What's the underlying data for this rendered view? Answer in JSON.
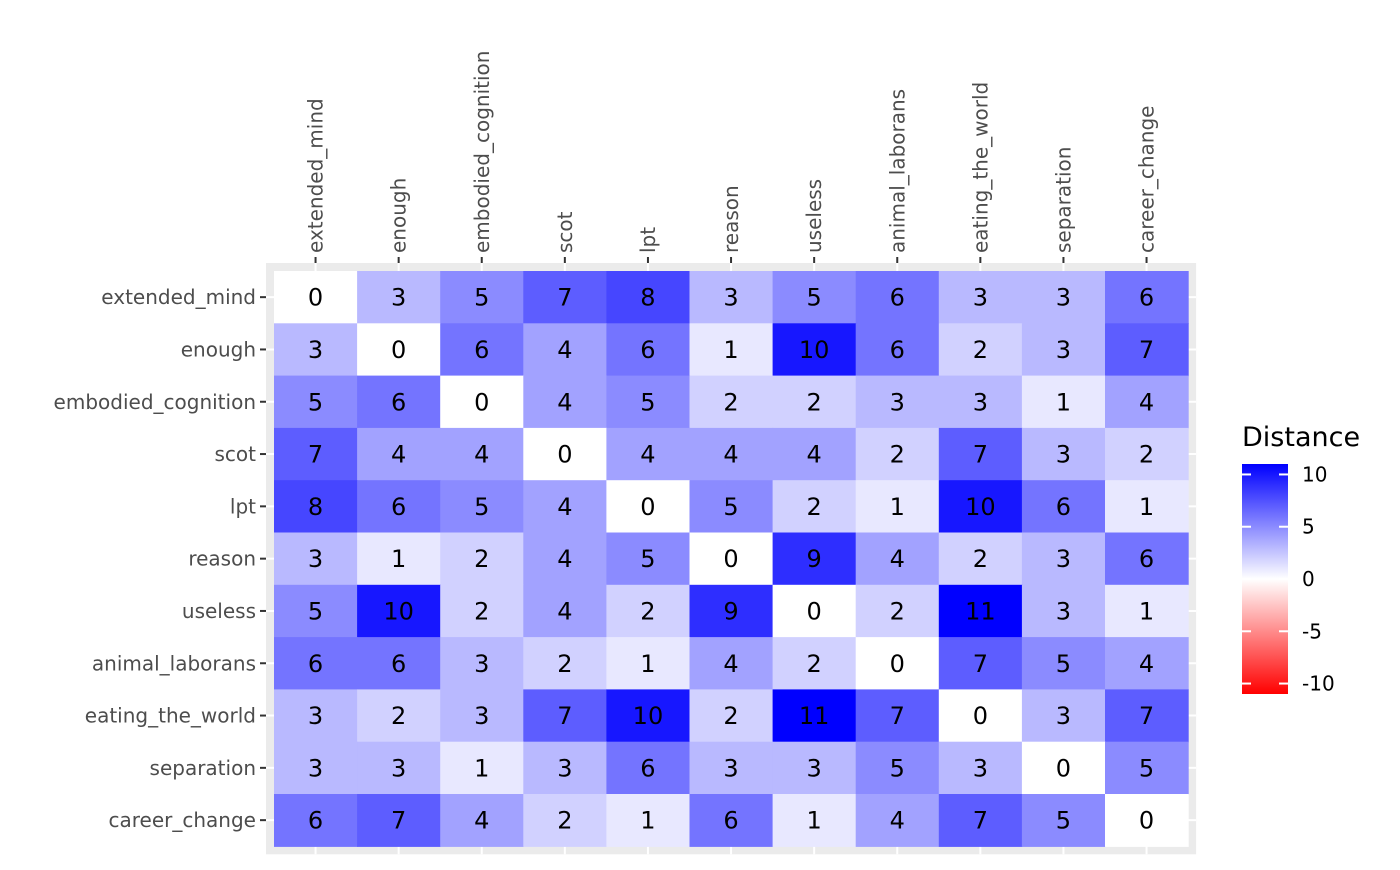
{
  "chart_data": {
    "type": "heatmap",
    "title": "",
    "xlabel": "",
    "ylabel": "",
    "x_categories": [
      "extended_mind",
      "enough",
      "embodied_cognition",
      "scot",
      "lpt",
      "reason",
      "useless",
      "animal_laborans",
      "eating_the_world",
      "separation",
      "career_change"
    ],
    "y_categories": [
      "extended_mind",
      "enough",
      "embodied_cognition",
      "scot",
      "lpt",
      "reason",
      "useless",
      "animal_laborans",
      "eating_the_world",
      "separation",
      "career_change"
    ],
    "values": [
      [
        0,
        3,
        5,
        7,
        8,
        3,
        5,
        6,
        3,
        3,
        6
      ],
      [
        3,
        0,
        6,
        4,
        6,
        1,
        10,
        6,
        2,
        3,
        7
      ],
      [
        5,
        6,
        0,
        4,
        5,
        2,
        2,
        3,
        3,
        1,
        4
      ],
      [
        7,
        4,
        4,
        0,
        4,
        4,
        4,
        2,
        7,
        3,
        2
      ],
      [
        8,
        6,
        5,
        4,
        0,
        5,
        2,
        1,
        10,
        6,
        1
      ],
      [
        3,
        1,
        2,
        4,
        5,
        0,
        9,
        4,
        2,
        3,
        6
      ],
      [
        5,
        10,
        2,
        4,
        2,
        9,
        0,
        2,
        11,
        3,
        1
      ],
      [
        6,
        6,
        3,
        2,
        1,
        4,
        2,
        0,
        7,
        5,
        4
      ],
      [
        3,
        2,
        3,
        7,
        10,
        2,
        11,
        7,
        0,
        3,
        7
      ],
      [
        3,
        3,
        1,
        3,
        6,
        3,
        3,
        5,
        3,
        0,
        5
      ],
      [
        6,
        7,
        4,
        2,
        1,
        6,
        1,
        4,
        7,
        5,
        0
      ]
    ],
    "x_axis_position": "top",
    "grid": true,
    "legend": {
      "title": "Distance",
      "placement": "right",
      "ticks": [
        10,
        5,
        0,
        -5,
        -10
      ],
      "tick_labels": [
        "10",
        "5",
        "0",
        "-5",
        "-10"
      ],
      "range": [
        -11,
        11
      ],
      "colors": {
        "low": "#FF0000",
        "mid": "#FFFFFF",
        "high": "#0000FF"
      }
    },
    "panel_background": "#EBEBEB",
    "text_color": "#000000",
    "tick_color": "#4D4D4D"
  }
}
